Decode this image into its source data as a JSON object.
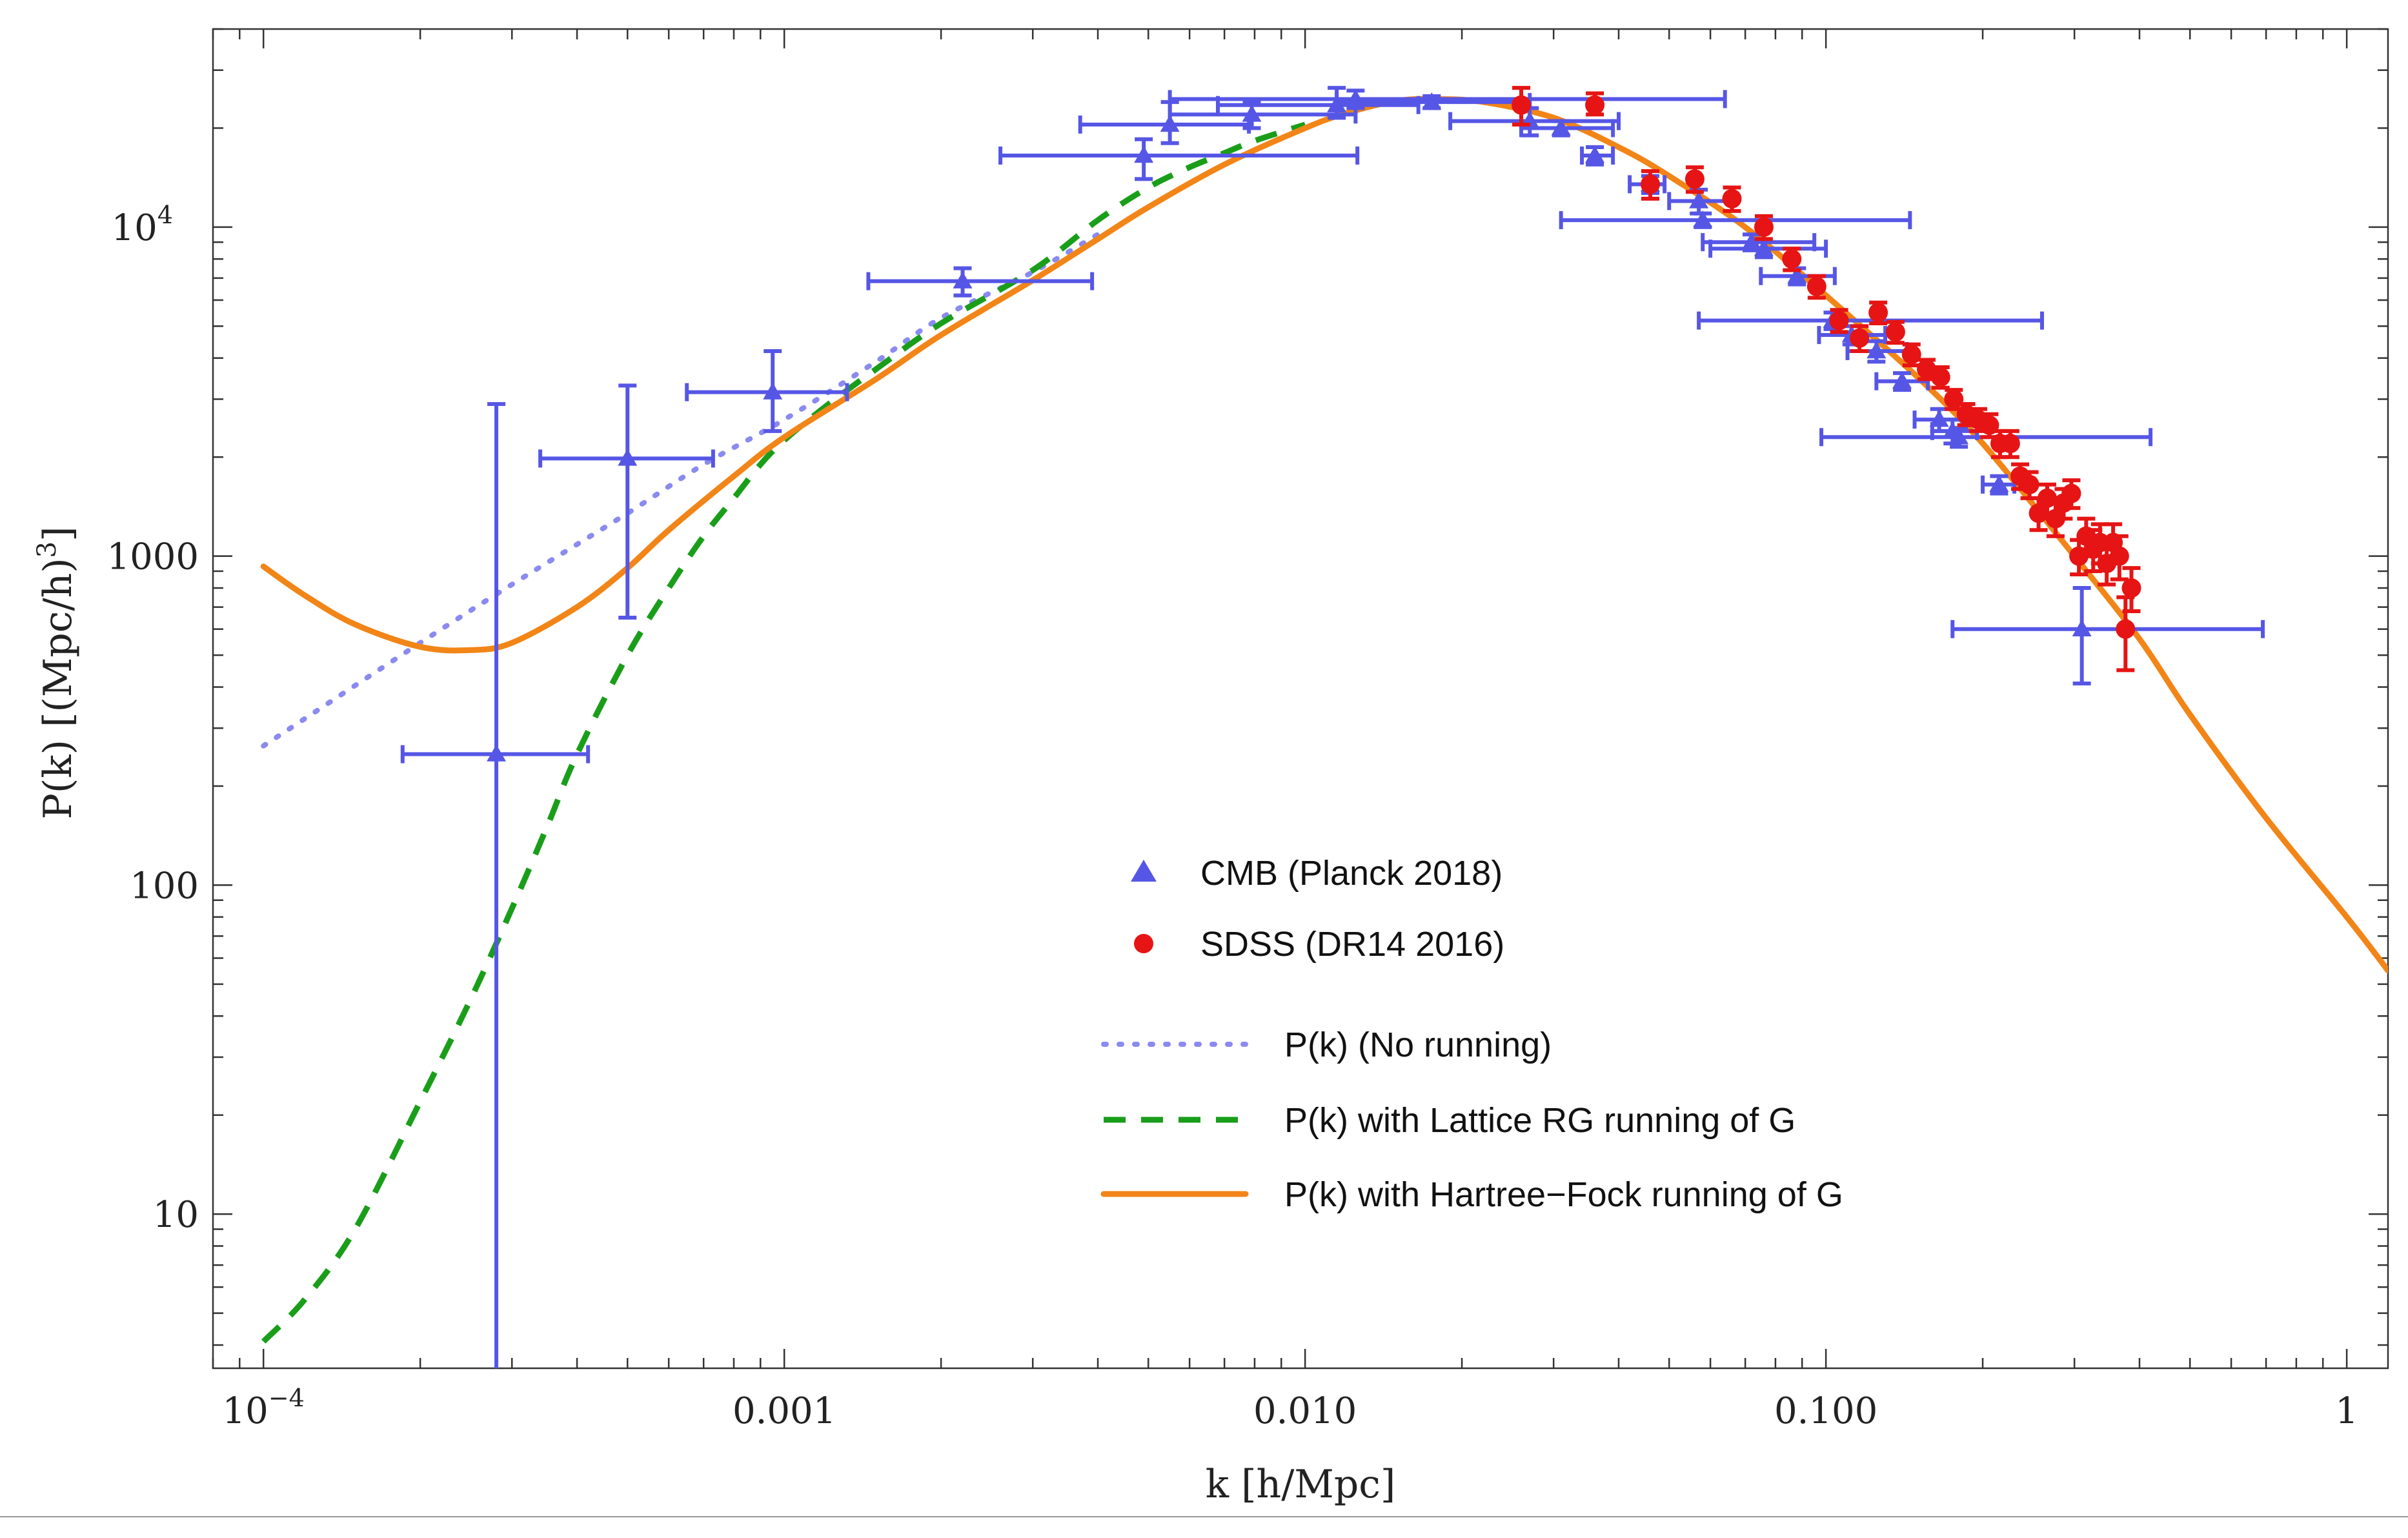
{
  "chart_data": {
    "type": "scatter",
    "title": "",
    "xlabel": "k [h/Mpc]",
    "ylabel_parts": {
      "main": "P(k) [(Mpc/h)",
      "sup": "3",
      "tail": "]"
    },
    "x_scale": "log",
    "y_scale": "log",
    "xlim": [
      8e-05,
      1.2
    ],
    "ylim": [
      3.4,
      40000
    ],
    "x_ticks": [
      {
        "value": 0.0001,
        "label": "10",
        "sup": "−4"
      },
      {
        "value": 0.001,
        "label": "0.001",
        "sup": ""
      },
      {
        "value": 0.01,
        "label": "0.010",
        "sup": ""
      },
      {
        "value": 0.1,
        "label": "0.100",
        "sup": ""
      },
      {
        "value": 1,
        "label": "1",
        "sup": ""
      }
    ],
    "y_ticks": [
      {
        "value": 10,
        "label": "10",
        "sup": ""
      },
      {
        "value": 100,
        "label": "100",
        "sup": ""
      },
      {
        "value": 1000,
        "label": "1000",
        "sup": ""
      },
      {
        "value": 10000,
        "label": "10",
        "sup": "4"
      }
    ],
    "colors": {
      "cmb": "#5656e6",
      "sdss": "#e61414",
      "no_running": "#8a8af0",
      "lattice": "#1a9e1a",
      "hartree": "#f28517",
      "axis": "#333333"
    },
    "legend": [
      {
        "label": "CMB (Planck 2018)",
        "marker": "triangle",
        "color_key": "cmb"
      },
      {
        "label": "SDSS (DR14 2016)",
        "marker": "circle",
        "color_key": "sdss"
      },
      {
        "label": "P(k) (No running)",
        "marker": "dotted",
        "color_key": "no_running"
      },
      {
        "label": "P(k) with Lattice RG running of G",
        "marker": "dashed",
        "color_key": "lattice"
      },
      {
        "label": "P(k) with Hartree−Fock running of G",
        "marker": "solid",
        "color_key": "hartree"
      }
    ],
    "legend_position": "lower-center",
    "series": [
      {
        "name": "CMB (Planck 2018)",
        "kind": "points",
        "marker": "triangle",
        "color_key": "cmb",
        "points": [
          {
            "x": 0.00028,
            "y": 250,
            "xlo": 0.000185,
            "xhi": 0.00042,
            "ylo": 3.4,
            "yhi": 2900
          },
          {
            "x": 0.0005,
            "y": 1980,
            "xlo": 0.00034,
            "xhi": 0.00073,
            "ylo": 650,
            "yhi": 3300
          },
          {
            "x": 0.00095,
            "y": 3150,
            "xlo": 0.00065,
            "xhi": 0.00132,
            "ylo": 2400,
            "yhi": 4200
          },
          {
            "x": 0.0022,
            "y": 6850,
            "xlo": 0.00145,
            "xhi": 0.0039,
            "ylo": 6200,
            "yhi": 7500
          },
          {
            "x": 0.0049,
            "y": 16500,
            "xlo": 0.0026,
            "xhi": 0.0126,
            "ylo": 14000,
            "yhi": 18500
          },
          {
            "x": 0.0055,
            "y": 20500,
            "xlo": 0.0037,
            "xhi": 0.0078,
            "ylo": 18000,
            "yhi": 24000
          },
          {
            "x": 0.0079,
            "y": 22000,
            "xlo": 0.0055,
            "xhi": 0.0125,
            "ylo": 20000,
            "yhi": 24000
          },
          {
            "x": 0.0115,
            "y": 23500,
            "xlo": 0.0068,
            "xhi": 0.0165,
            "ylo": 21500,
            "yhi": 26500
          },
          {
            "x": 0.0125,
            "y": 24500,
            "xlo": 0.0055,
            "xhi": 0.064,
            "ylo": 23000,
            "yhi": 26000
          },
          {
            "x": 0.0175,
            "y": 24000,
            "xlo": 0.0115,
            "xhi": 0.027,
            "ylo": 23000,
            "yhi": 25000
          },
          {
            "x": 0.027,
            "y": 21000,
            "xlo": 0.019,
            "xhi": 0.04,
            "ylo": 19000,
            "yhi": 23000
          },
          {
            "x": 0.031,
            "y": 20000,
            "xlo": 0.026,
            "xhi": 0.039,
            "ylo": 19000,
            "yhi": 21000
          },
          {
            "x": 0.036,
            "y": 16500,
            "xlo": 0.034,
            "xhi": 0.039,
            "ylo": 15500,
            "yhi": 17500
          },
          {
            "x": 0.046,
            "y": 13500,
            "xlo": 0.042,
            "xhi": 0.049,
            "ylo": 12700,
            "yhi": 14300
          },
          {
            "x": 0.058,
            "y": 10500,
            "xlo": 0.031,
            "xhi": 0.145,
            "ylo": 10000,
            "yhi": 11000
          },
          {
            "x": 0.057,
            "y": 12000,
            "xlo": 0.05,
            "xhi": 0.066,
            "ylo": 11000,
            "yhi": 13000
          },
          {
            "x": 0.072,
            "y": 9000,
            "xlo": 0.058,
            "xhi": 0.095,
            "ylo": 8500,
            "yhi": 9500
          },
          {
            "x": 0.076,
            "y": 8600,
            "xlo": 0.06,
            "xhi": 0.1,
            "ylo": 8100,
            "yhi": 9100
          },
          {
            "x": 0.088,
            "y": 7100,
            "xlo": 0.075,
            "xhi": 0.104,
            "ylo": 6700,
            "yhi": 7500
          },
          {
            "x": 0.103,
            "y": 5200,
            "xlo": 0.057,
            "xhi": 0.26,
            "ylo": 4900,
            "yhi": 5500
          },
          {
            "x": 0.112,
            "y": 4700,
            "xlo": 0.097,
            "xhi": 0.13,
            "ylo": 4400,
            "yhi": 5000
          },
          {
            "x": 0.125,
            "y": 4200,
            "xlo": 0.11,
            "xhi": 0.143,
            "ylo": 3900,
            "yhi": 4500
          },
          {
            "x": 0.14,
            "y": 3400,
            "xlo": 0.125,
            "xhi": 0.157,
            "ylo": 3200,
            "yhi": 3600
          },
          {
            "x": 0.165,
            "y": 2600,
            "xlo": 0.148,
            "xhi": 0.183,
            "ylo": 2400,
            "yhi": 2800
          },
          {
            "x": 0.18,
            "y": 2300,
            "xlo": 0.098,
            "xhi": 0.42,
            "ylo": 2150,
            "yhi": 2450
          },
          {
            "x": 0.175,
            "y": 2400,
            "xlo": 0.16,
            "xhi": 0.195,
            "ylo": 2200,
            "yhi": 2600
          },
          {
            "x": 0.215,
            "y": 1650,
            "xlo": 0.2,
            "xhi": 0.23,
            "ylo": 1550,
            "yhi": 1750
          },
          {
            "x": 0.31,
            "y": 600,
            "xlo": 0.175,
            "xhi": 0.69,
            "ylo": 410,
            "yhi": 800
          }
        ]
      },
      {
        "name": "SDSS (DR14 2016)",
        "kind": "points",
        "marker": "circle",
        "color_key": "sdss",
        "points": [
          {
            "x": 0.026,
            "y": 23500,
            "ylo": 20500,
            "yhi": 26500
          },
          {
            "x": 0.036,
            "y": 23500,
            "ylo": 22000,
            "yhi": 25500
          },
          {
            "x": 0.046,
            "y": 13500,
            "ylo": 12200,
            "yhi": 14800
          },
          {
            "x": 0.056,
            "y": 14000,
            "ylo": 12800,
            "yhi": 15200
          },
          {
            "x": 0.066,
            "y": 12200,
            "ylo": 11200,
            "yhi": 13200
          },
          {
            "x": 0.076,
            "y": 10000,
            "ylo": 9200,
            "yhi": 10800
          },
          {
            "x": 0.086,
            "y": 8000,
            "ylo": 7400,
            "yhi": 8600
          },
          {
            "x": 0.096,
            "y": 6600,
            "ylo": 6100,
            "yhi": 7100
          },
          {
            "x": 0.106,
            "y": 5200,
            "ylo": 4800,
            "yhi": 5600
          },
          {
            "x": 0.116,
            "y": 4600,
            "ylo": 4200,
            "yhi": 5000
          },
          {
            "x": 0.126,
            "y": 5500,
            "ylo": 5100,
            "yhi": 5900
          },
          {
            "x": 0.136,
            "y": 4800,
            "ylo": 4450,
            "yhi": 5150
          },
          {
            "x": 0.146,
            "y": 4100,
            "ylo": 3800,
            "yhi": 4400
          },
          {
            "x": 0.156,
            "y": 3700,
            "ylo": 3450,
            "yhi": 3950
          },
          {
            "x": 0.166,
            "y": 3500,
            "ylo": 3250,
            "yhi": 3750
          },
          {
            "x": 0.176,
            "y": 3000,
            "ylo": 2800,
            "yhi": 3200
          },
          {
            "x": 0.186,
            "y": 2700,
            "ylo": 2500,
            "yhi": 2900
          },
          {
            "x": 0.196,
            "y": 2600,
            "ylo": 2400,
            "yhi": 2800
          },
          {
            "x": 0.206,
            "y": 2500,
            "ylo": 2300,
            "yhi": 2700
          },
          {
            "x": 0.216,
            "y": 2200,
            "ylo": 2000,
            "yhi": 2400
          },
          {
            "x": 0.226,
            "y": 2200,
            "ylo": 2000,
            "yhi": 2400
          },
          {
            "x": 0.236,
            "y": 1750,
            "ylo": 1600,
            "yhi": 1900
          },
          {
            "x": 0.246,
            "y": 1650,
            "ylo": 1500,
            "yhi": 1800
          },
          {
            "x": 0.256,
            "y": 1350,
            "ylo": 1200,
            "yhi": 1500
          },
          {
            "x": 0.266,
            "y": 1500,
            "ylo": 1350,
            "yhi": 1650
          },
          {
            "x": 0.276,
            "y": 1300,
            "ylo": 1150,
            "yhi": 1450
          },
          {
            "x": 0.286,
            "y": 1450,
            "ylo": 1300,
            "yhi": 1600
          },
          {
            "x": 0.296,
            "y": 1550,
            "ylo": 1400,
            "yhi": 1700
          },
          {
            "x": 0.306,
            "y": 1000,
            "ylo": 880,
            "yhi": 1120
          },
          {
            "x": 0.316,
            "y": 1150,
            "ylo": 1000,
            "yhi": 1300
          },
          {
            "x": 0.326,
            "y": 1050,
            "ylo": 900,
            "yhi": 1200
          },
          {
            "x": 0.336,
            "y": 1100,
            "ylo": 950,
            "yhi": 1250
          },
          {
            "x": 0.346,
            "y": 950,
            "ylo": 820,
            "yhi": 1080
          },
          {
            "x": 0.356,
            "y": 1100,
            "ylo": 950,
            "yhi": 1250
          },
          {
            "x": 0.366,
            "y": 1000,
            "ylo": 850,
            "yhi": 1150
          },
          {
            "x": 0.376,
            "y": 600,
            "ylo": 450,
            "yhi": 750
          },
          {
            "x": 0.386,
            "y": 800,
            "ylo": 680,
            "yhi": 920
          }
        ]
      },
      {
        "name": "P(k) (No running)",
        "kind": "line",
        "style": "dotted",
        "color_key": "no_running",
        "points": [
          [
            0.0001,
            265
          ],
          [
            0.0002,
            545
          ],
          [
            0.0003,
            820
          ],
          [
            0.0005,
            1350
          ],
          [
            0.0007,
            1900
          ],
          [
            0.001,
            2600
          ],
          [
            0.0015,
            3900
          ],
          [
            0.002,
            5300
          ],
          [
            0.003,
            7300
          ],
          [
            0.004,
            9500
          ]
        ]
      },
      {
        "name": "P(k) with Lattice RG running of G",
        "kind": "line",
        "style": "dashed",
        "color_key": "lattice",
        "points": [
          [
            0.0001,
            4.1
          ],
          [
            0.00012,
            5.5
          ],
          [
            0.00015,
            9
          ],
          [
            0.0002,
            22
          ],
          [
            0.00025,
            45
          ],
          [
            0.0003,
            85
          ],
          [
            0.00035,
            150
          ],
          [
            0.0004,
            250
          ],
          [
            0.0005,
            500
          ],
          [
            0.0006,
            800
          ],
          [
            0.0007,
            1150
          ],
          [
            0.0008,
            1500
          ],
          [
            0.0009,
            1900
          ],
          [
            0.001,
            2250
          ],
          [
            0.0012,
            2850
          ],
          [
            0.0015,
            3700
          ],
          [
            0.002,
            5100
          ],
          [
            0.003,
            7400
          ],
          [
            0.004,
            10500
          ],
          [
            0.005,
            13200
          ],
          [
            0.006,
            15200
          ],
          [
            0.007,
            16800
          ],
          [
            0.008,
            18300
          ],
          [
            0.01,
            20500
          ]
        ]
      },
      {
        "name": "P(k) with Hartree−Fock running of G",
        "kind": "line",
        "style": "solid",
        "color_key": "hartree",
        "points": [
          [
            0.0001,
            930
          ],
          [
            0.00012,
            760
          ],
          [
            0.00015,
            620
          ],
          [
            0.0002,
            530
          ],
          [
            0.00025,
            518
          ],
          [
            0.0003,
            545
          ],
          [
            0.0004,
            700
          ],
          [
            0.0005,
            920
          ],
          [
            0.0006,
            1200
          ],
          [
            0.0008,
            1750
          ],
          [
            0.001,
            2300
          ],
          [
            0.0015,
            3450
          ],
          [
            0.002,
            4700
          ],
          [
            0.003,
            6900
          ],
          [
            0.004,
            9200
          ],
          [
            0.005,
            11500
          ],
          [
            0.007,
            15500
          ],
          [
            0.01,
            20000
          ],
          [
            0.012,
            22200
          ],
          [
            0.015,
            24200
          ],
          [
            0.018,
            24500
          ],
          [
            0.022,
            24000
          ],
          [
            0.03,
            21500
          ],
          [
            0.04,
            17500
          ],
          [
            0.05,
            14300
          ],
          [
            0.07,
            10000
          ],
          [
            0.1,
            6200
          ],
          [
            0.15,
            3500
          ],
          [
            0.2,
            2200
          ],
          [
            0.3,
            1000
          ],
          [
            0.4,
            560
          ],
          [
            0.5,
            330
          ],
          [
            0.7,
            160
          ],
          [
            1.0,
            80
          ],
          [
            1.2,
            55
          ]
        ]
      }
    ]
  }
}
